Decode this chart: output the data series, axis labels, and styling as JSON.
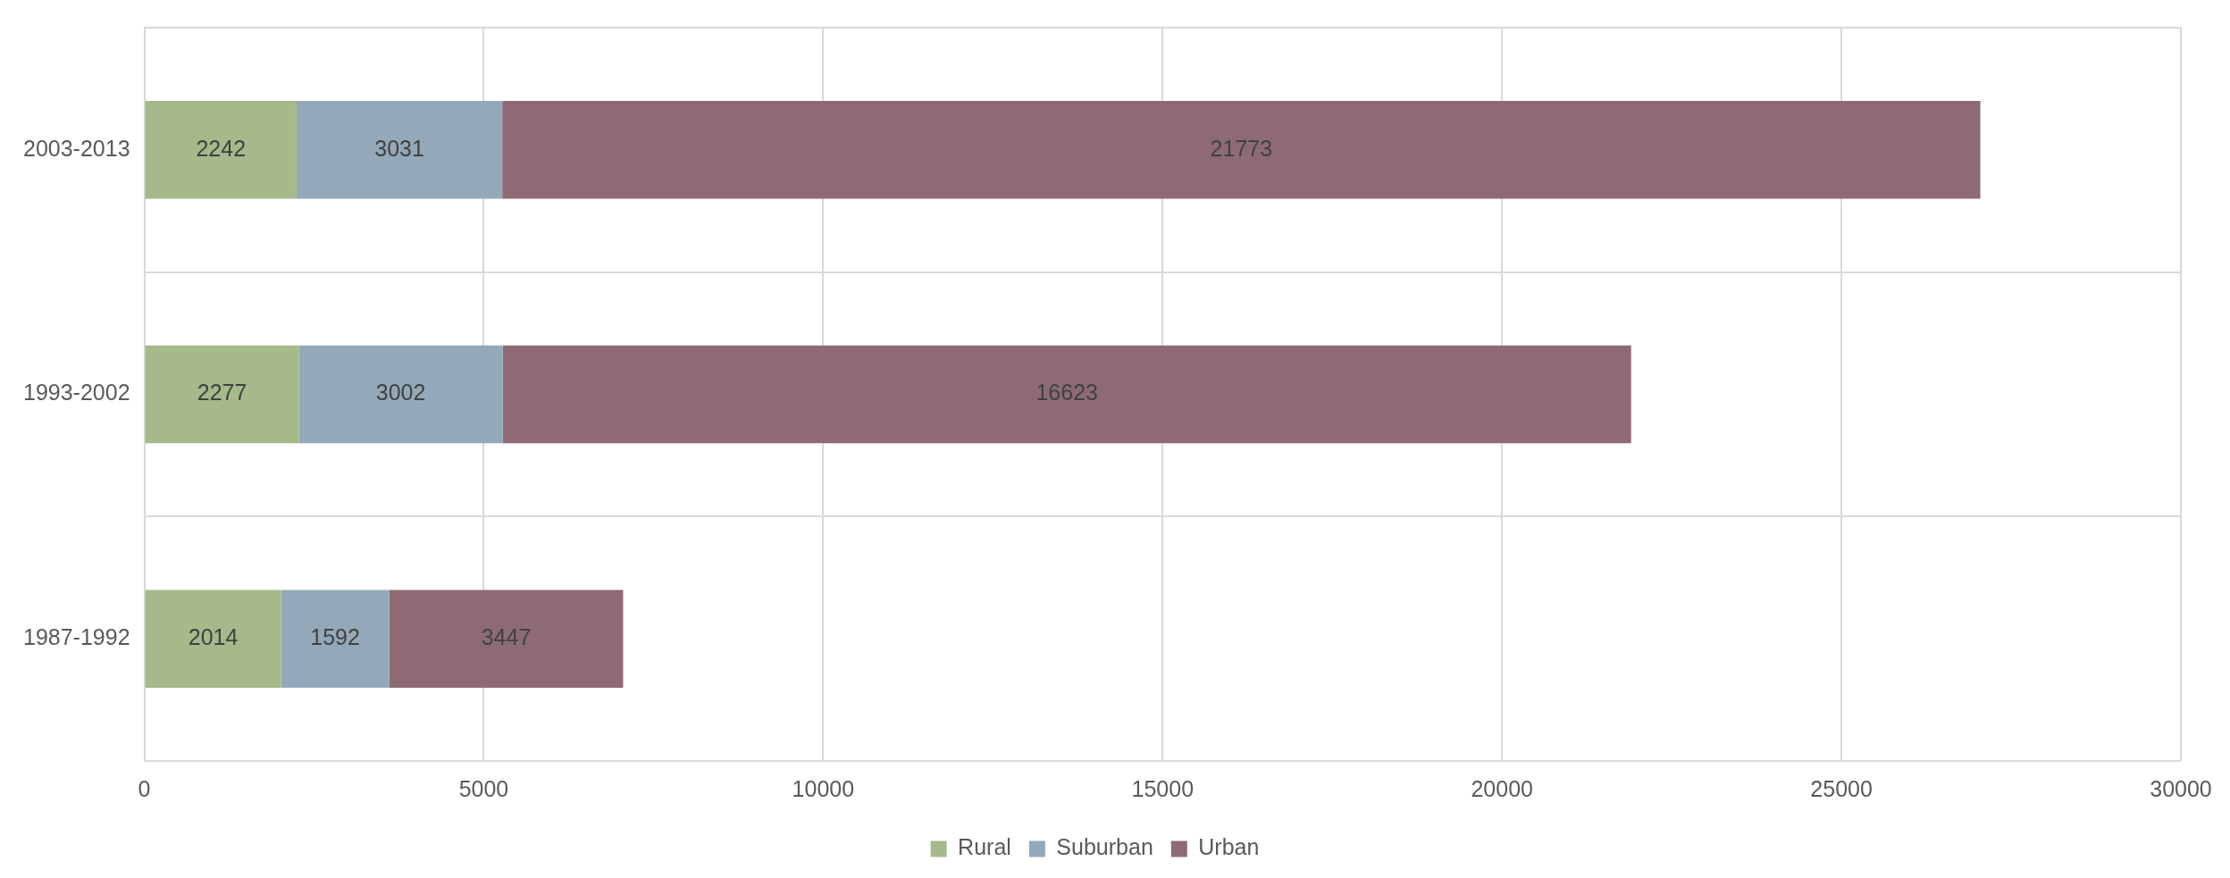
{
  "chart_data": {
    "type": "bar",
    "orientation": "horizontal",
    "stacked": true,
    "categories": [
      "2003-2013",
      "1993-2002",
      "1987-1992"
    ],
    "series": [
      {
        "name": "Rural",
        "color": "#a5b98a",
        "values": [
          2242,
          2277,
          2014
        ]
      },
      {
        "name": "Suburban",
        "color": "#93a9b9",
        "values": [
          3031,
          3002,
          1592
        ]
      },
      {
        "name": "Urban",
        "color": "#8e6b74",
        "values": [
          21773,
          16623,
          3447
        ]
      }
    ],
    "xlim": [
      0,
      30000
    ],
    "xticks": [
      0,
      5000,
      10000,
      15000,
      20000,
      25000,
      30000
    ],
    "grid": true,
    "legend": "bottom",
    "data_labels": true
  }
}
